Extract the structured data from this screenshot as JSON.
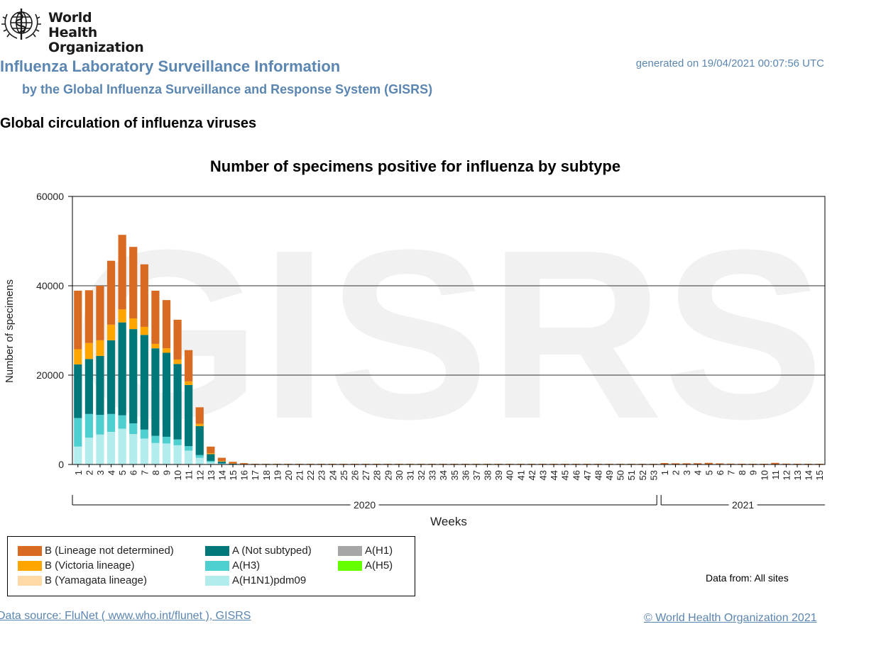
{
  "header": {
    "logo_text_line1": "World Health",
    "logo_text_line2": "Organization",
    "title": "Influenza Laboratory Surveillance Information",
    "subtitle": "by the Global Influenza Surveillance and Response System (GISRS)",
    "generated": "generated on 19/04/2021 00:07:56 UTC",
    "section_title": "Global circulation of influenza viruses"
  },
  "footer": {
    "data_source": "Data source: FluNet ( www.who.int/flunet ), GISRS",
    "copyright": "© World Health Organization 2021",
    "data_from": "Data from: All sites"
  },
  "chart_data": {
    "type": "bar",
    "stacked": true,
    "title": "Number of specimens positive for influenza by subtype",
    "xlabel": "Weeks",
    "ylabel": "Number of specimens",
    "ylim": [
      0,
      60000
    ],
    "yticks": [
      0,
      20000,
      40000,
      60000
    ],
    "grid": true,
    "watermark": "GISRS",
    "legend_position": "bottom-left",
    "categories": [
      "1",
      "2",
      "3",
      "4",
      "5",
      "6",
      "7",
      "8",
      "9",
      "10",
      "11",
      "12",
      "13",
      "14",
      "15",
      "16",
      "17",
      "18",
      "19",
      "20",
      "21",
      "22",
      "23",
      "24",
      "25",
      "26",
      "27",
      "28",
      "29",
      "30",
      "31",
      "32",
      "33",
      "34",
      "35",
      "36",
      "37",
      "38",
      "39",
      "40",
      "41",
      "42",
      "43",
      "44",
      "45",
      "46",
      "47",
      "48",
      "49",
      "50",
      "51",
      "52",
      "53",
      "1",
      "2",
      "3",
      "4",
      "5",
      "6",
      "7",
      "8",
      "9",
      "10",
      "11",
      "12",
      "13",
      "14",
      "15"
    ],
    "year_groups": [
      {
        "label": "2020",
        "start": 0,
        "end": 52
      },
      {
        "label": "2021",
        "start": 53,
        "end": 67
      }
    ],
    "series": [
      {
        "name": "A(H1N1)pdm09",
        "color": "#b3ecec",
        "values": [
          4000,
          6000,
          6700,
          7300,
          8000,
          6800,
          5800,
          4800,
          4700,
          4300,
          3100,
          1500,
          500,
          150,
          50,
          20,
          10,
          5,
          5,
          5,
          5,
          5,
          5,
          5,
          5,
          5,
          5,
          5,
          5,
          5,
          5,
          5,
          5,
          5,
          5,
          5,
          5,
          5,
          5,
          5,
          5,
          5,
          5,
          5,
          5,
          5,
          5,
          5,
          5,
          5,
          5,
          5,
          5,
          10,
          10,
          10,
          10,
          10,
          10,
          10,
          10,
          10,
          10,
          10,
          10,
          10,
          10,
          10
        ]
      },
      {
        "name": "A(H3)",
        "color": "#4fd0d0",
        "values": [
          6400,
          5300,
          4400,
          4000,
          3000,
          2400,
          2000,
          1600,
          1500,
          1300,
          1000,
          600,
          300,
          100,
          40,
          20,
          10,
          10,
          10,
          10,
          10,
          10,
          10,
          10,
          10,
          10,
          10,
          10,
          10,
          10,
          10,
          10,
          10,
          10,
          10,
          10,
          10,
          10,
          10,
          10,
          10,
          10,
          10,
          10,
          10,
          10,
          10,
          10,
          10,
          10,
          10,
          10,
          10,
          10,
          10,
          10,
          10,
          10,
          10,
          10,
          10,
          10,
          10,
          10,
          10,
          10,
          10,
          10
        ]
      },
      {
        "name": "A(Not subtyped)",
        "color": "#00787a",
        "values": [
          12000,
          12300,
          13200,
          16500,
          20800,
          21100,
          21200,
          19600,
          18800,
          16900,
          13700,
          6500,
          1500,
          400,
          100,
          30,
          20,
          15,
          15,
          15,
          15,
          15,
          15,
          15,
          15,
          15,
          15,
          15,
          15,
          15,
          15,
          15,
          15,
          15,
          15,
          15,
          15,
          15,
          15,
          15,
          15,
          15,
          15,
          15,
          15,
          15,
          15,
          15,
          15,
          15,
          15,
          15,
          15,
          20,
          20,
          20,
          20,
          20,
          20,
          20,
          20,
          20,
          20,
          20,
          20,
          20,
          20,
          20
        ]
      },
      {
        "name": "A(H1)",
        "color": "#a6a6a6",
        "values": [
          0,
          0,
          0,
          0,
          0,
          0,
          0,
          0,
          0,
          0,
          0,
          0,
          0,
          0,
          0,
          0,
          0,
          0,
          0,
          0,
          0,
          0,
          0,
          0,
          0,
          0,
          0,
          0,
          0,
          0,
          0,
          0,
          0,
          0,
          0,
          0,
          0,
          0,
          0,
          0,
          0,
          0,
          0,
          0,
          0,
          0,
          0,
          0,
          0,
          0,
          0,
          0,
          0,
          0,
          0,
          0,
          0,
          0,
          0,
          0,
          0,
          0,
          0,
          0,
          0,
          0,
          0,
          0
        ]
      },
      {
        "name": "A(H5)",
        "color": "#66ff00",
        "values": [
          0,
          0,
          0,
          0,
          0,
          0,
          0,
          0,
          0,
          0,
          0,
          0,
          0,
          0,
          0,
          0,
          0,
          0,
          0,
          0,
          0,
          0,
          0,
          0,
          0,
          0,
          0,
          0,
          0,
          0,
          0,
          0,
          0,
          0,
          0,
          0,
          0,
          0,
          0,
          0,
          0,
          0,
          0,
          0,
          0,
          0,
          0,
          0,
          0,
          0,
          0,
          0,
          0,
          0,
          0,
          0,
          0,
          0,
          0,
          0,
          0,
          0,
          0,
          0,
          0,
          0,
          0,
          0
        ]
      },
      {
        "name": "B (Yamagata lineage)",
        "color": "#ffd9a6",
        "values": [
          0,
          0,
          0,
          0,
          0,
          0,
          0,
          0,
          0,
          0,
          0,
          0,
          0,
          0,
          0,
          0,
          0,
          0,
          0,
          0,
          0,
          0,
          0,
          0,
          0,
          0,
          0,
          0,
          0,
          0,
          0,
          0,
          0,
          0,
          0,
          0,
          0,
          0,
          0,
          0,
          0,
          0,
          0,
          0,
          0,
          0,
          0,
          0,
          0,
          0,
          0,
          0,
          0,
          0,
          0,
          0,
          0,
          0,
          0,
          0,
          0,
          0,
          0,
          0,
          0,
          0,
          0,
          0
        ]
      },
      {
        "name": "B (Victoria lineage)",
        "color": "#ffa500",
        "values": [
          3400,
          3600,
          3500,
          3500,
          2900,
          2400,
          1800,
          1000,
          1000,
          1000,
          800,
          500,
          200,
          100,
          30,
          20,
          10,
          10,
          10,
          10,
          10,
          10,
          10,
          10,
          10,
          10,
          10,
          10,
          10,
          10,
          10,
          10,
          10,
          10,
          10,
          10,
          10,
          10,
          10,
          10,
          10,
          10,
          10,
          10,
          10,
          10,
          10,
          10,
          10,
          10,
          10,
          10,
          10,
          20,
          20,
          20,
          20,
          20,
          20,
          20,
          20,
          20,
          20,
          20,
          20,
          20,
          20,
          20
        ]
      },
      {
        "name": "B (Lineage not determined)",
        "color": "#d96a22",
        "values": [
          13100,
          11800,
          12200,
          14300,
          16700,
          16000,
          14000,
          11900,
          10800,
          8900,
          7000,
          3700,
          1500,
          750,
          380,
          200,
          100,
          60,
          60,
          60,
          60,
          60,
          60,
          60,
          60,
          60,
          60,
          60,
          60,
          60,
          60,
          60,
          60,
          60,
          80,
          80,
          80,
          90,
          80,
          90,
          90,
          90,
          90,
          90,
          90,
          90,
          90,
          90,
          90,
          90,
          90,
          90,
          90,
          250,
          200,
          200,
          220,
          300,
          180,
          120,
          100,
          90,
          80,
          300,
          120,
          100,
          80,
          60
        ]
      }
    ]
  },
  "legend": {
    "items": [
      {
        "label": "B (Lineage not determined)",
        "color": "#d96a22"
      },
      {
        "label": "B (Victoria lineage)",
        "color": "#ffa500"
      },
      {
        "label": "B (Yamagata lineage)",
        "color": "#ffd9a6"
      },
      {
        "label": "A (Not subtyped)",
        "color": "#00787a"
      },
      {
        "label": "A(H3)",
        "color": "#4fd0d0"
      },
      {
        "label": "A(H1N1)pdm09",
        "color": "#b3ecec"
      },
      {
        "label": "A(H1)",
        "color": "#a6a6a6"
      },
      {
        "label": "A(H5)",
        "color": "#66ff00"
      }
    ]
  }
}
